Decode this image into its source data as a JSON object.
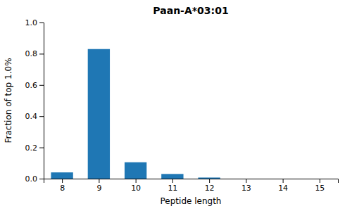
{
  "chart_data": {
    "type": "bar",
    "title": "Paan-A*03:01",
    "xlabel": "Peptide length",
    "ylabel": "Fraction of top 1.0%",
    "x": [
      8,
      9,
      10,
      11,
      12,
      13,
      14,
      15
    ],
    "values": [
      0.04,
      0.83,
      0.105,
      0.03,
      0.007,
      0.0,
      0.0,
      0.0
    ],
    "color": "#1f77b4",
    "xlim": [
      7.5,
      15.5
    ],
    "xticks": [
      8,
      9,
      10,
      11,
      12,
      13,
      14,
      15
    ],
    "ylim": [
      0.0,
      1.0
    ],
    "yticks": [
      {
        "value": 0.0,
        "label": "0.0"
      },
      0.2,
      0.4,
      0.6,
      0.8,
      {
        "value": 1.0,
        "label": "1.0"
      }
    ],
    "grid": false
  }
}
